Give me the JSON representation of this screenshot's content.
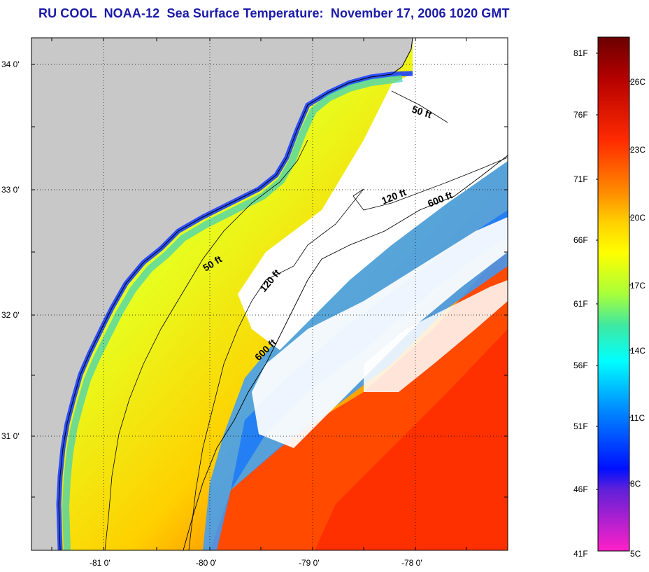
{
  "title": "RU COOL  NOAA-12  Sea Surface Temperature:  November 17, 2006 1020 GMT",
  "map": {
    "lat_labels": [
      "34 0'",
      "33 0'",
      "32 0'",
      "31 0'"
    ],
    "lon_labels": [
      "-81 0'",
      "-80 0'",
      "-79 0'",
      "-78 0'"
    ],
    "contour_labels": [
      "50 ft",
      "120 ft",
      "600 ft",
      "50 ft",
      "120 ft",
      "600 ft"
    ],
    "colors": {
      "land": "#c8c8c8",
      "cloud": "#ffffff",
      "coast_line": "#000000"
    }
  },
  "colorbar": {
    "fahrenheit_labels": [
      "81F",
      "76F",
      "71F",
      "66F",
      "61F",
      "56F",
      "51F",
      "46F",
      "41F"
    ],
    "celsius_labels": [
      "26C",
      "23C",
      "20C",
      "17C",
      "14C",
      "11C",
      "8C",
      "5C"
    ],
    "gradient_stops": [
      "#6b0000",
      "#c80000",
      "#ff3000",
      "#ff8c00",
      "#ffd400",
      "#ffff00",
      "#b8ff30",
      "#50e090",
      "#00ffff",
      "#00a0ff",
      "#1050ff",
      "#0000ff",
      "#8030d0",
      "#ff20c0"
    ]
  }
}
